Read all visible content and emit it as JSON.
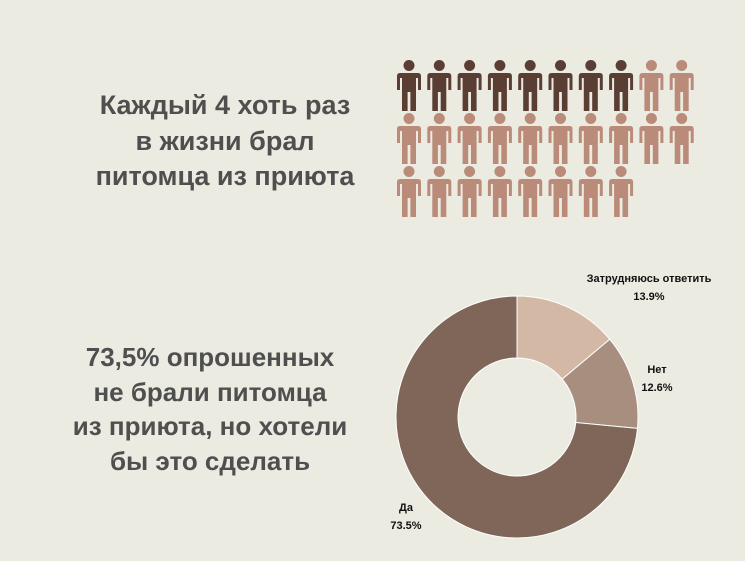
{
  "headline1": {
    "lines": [
      "Каждый 4 хоть раз",
      "в жизни брал",
      "питомца из приюта"
    ]
  },
  "headline2": {
    "lines": [
      "73,5% опрошенных",
      "не брали питомца",
      "из приюта, но хотели",
      "бы это сделать"
    ]
  },
  "colors": {
    "background": "#ecebe2",
    "text": "#4f4f4f",
    "person_dark": "#5a3e33",
    "person_light": "#b98b78",
    "slice_yes": "#7f6658",
    "slice_no": "#a88e7f",
    "slice_unsure": "#d3b8a6"
  },
  "icon_array": {
    "icon": "person-icon",
    "total": 28,
    "highlighted": 8
  },
  "chart_data": {
    "type": "pie",
    "donut": true,
    "slices": [
      {
        "label": "Затрудняюсь ответить",
        "value": 13.9,
        "value_label": "13.9%"
      },
      {
        "label": "Нет",
        "value": 12.6,
        "value_label": "12.6%"
      },
      {
        "label": "Да",
        "value": 73.5,
        "value_label": "73.5%"
      }
    ]
  }
}
